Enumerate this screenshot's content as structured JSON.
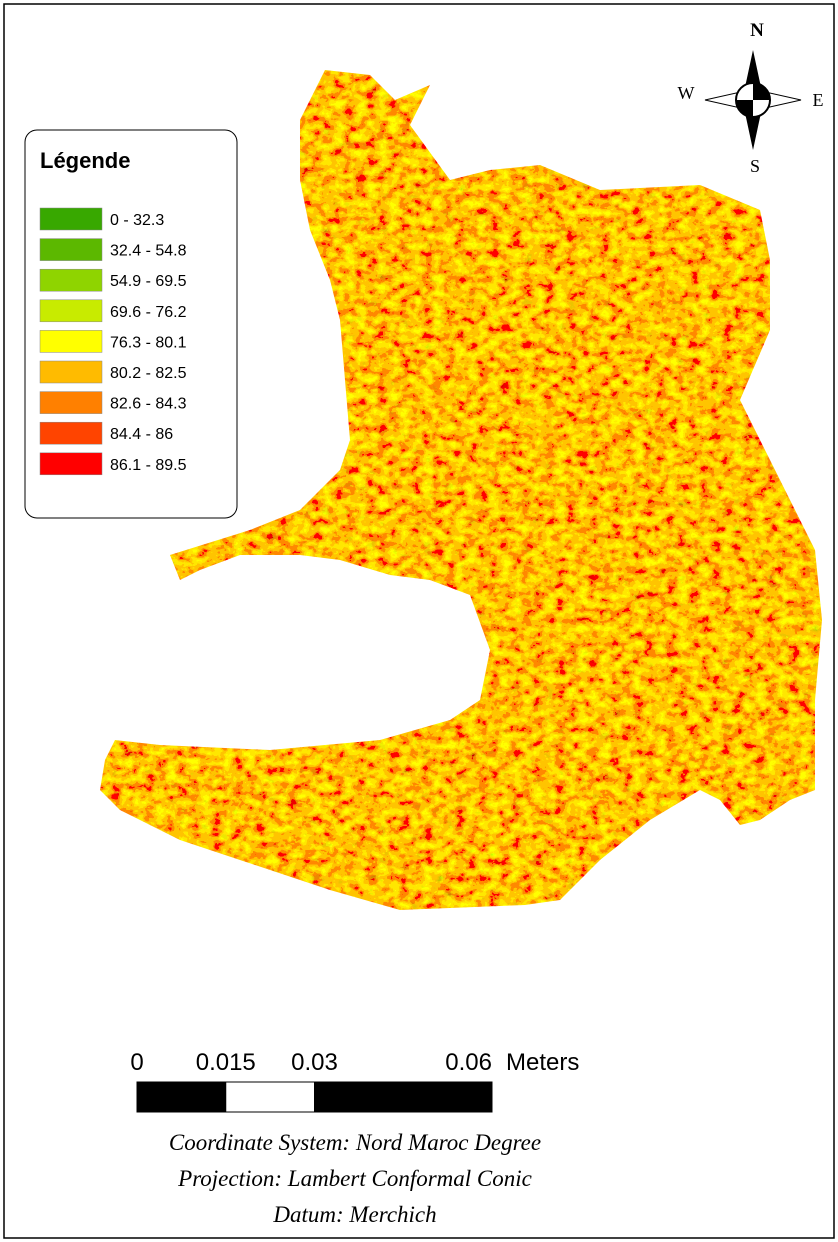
{
  "legend": {
    "title": "Légende",
    "items": [
      {
        "label": "0 - 32.3",
        "color": "#38a800"
      },
      {
        "label": "32.4 - 54.8",
        "color": "#5cb800"
      },
      {
        "label": "54.9 - 69.5",
        "color": "#8fd400"
      },
      {
        "label": "69.6 - 76.2",
        "color": "#c8eb00"
      },
      {
        "label": "76.3 - 80.1",
        "color": "#ffff00"
      },
      {
        "label": "80.2 - 82.5",
        "color": "#ffbb00"
      },
      {
        "label": "82.6 - 84.3",
        "color": "#ff8000"
      },
      {
        "label": "84.4 - 86",
        "color": "#ff4400"
      },
      {
        "label": "86.1 - 89.5",
        "color": "#ff0000"
      }
    ]
  },
  "compass": {
    "north": "N",
    "south": "S",
    "east": "E",
    "west": "W"
  },
  "scale_bar": {
    "ticks": [
      0,
      0.015,
      0.03,
      0.06
    ],
    "unit": "Meters"
  },
  "map_info": [
    "Coordinate System: Nord Maroc Degree",
    "Projection: Lambert Conformal Conic",
    "Datum: Merchich"
  ]
}
